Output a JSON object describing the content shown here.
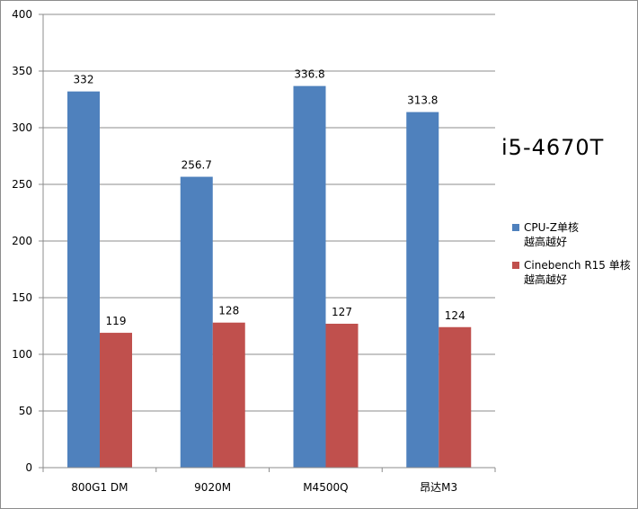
{
  "chart_data": {
    "type": "bar",
    "categories": [
      "800G1 DM",
      "9020M",
      "M4500Q",
      "昂达M3"
    ],
    "series": [
      {
        "name": "CPU-Z单核 越高越好",
        "values": [
          332,
          256.7,
          336.8,
          313.8
        ],
        "labels": [
          "332",
          "256.7",
          "336.8",
          "313.8"
        ],
        "color": "#4f81bd"
      },
      {
        "name": "Cinebench R15 单核 越高越好",
        "values": [
          119,
          128,
          127,
          124
        ],
        "labels": [
          "119",
          "128",
          "127",
          "124"
        ],
        "color": "#c0504d"
      }
    ],
    "ylim": [
      0,
      400
    ],
    "yticks": [
      "0",
      "50",
      "100",
      "150",
      "200",
      "250",
      "300",
      "350",
      "400"
    ],
    "grid": true,
    "legend_position": "right",
    "annotation": "i5-4670T",
    "title": "",
    "xlabel": "",
    "ylabel": ""
  },
  "legend": {
    "items": [
      "CPU-Z单核\n越高越好",
      "Cinebench R15 单核\n越高越好"
    ]
  }
}
